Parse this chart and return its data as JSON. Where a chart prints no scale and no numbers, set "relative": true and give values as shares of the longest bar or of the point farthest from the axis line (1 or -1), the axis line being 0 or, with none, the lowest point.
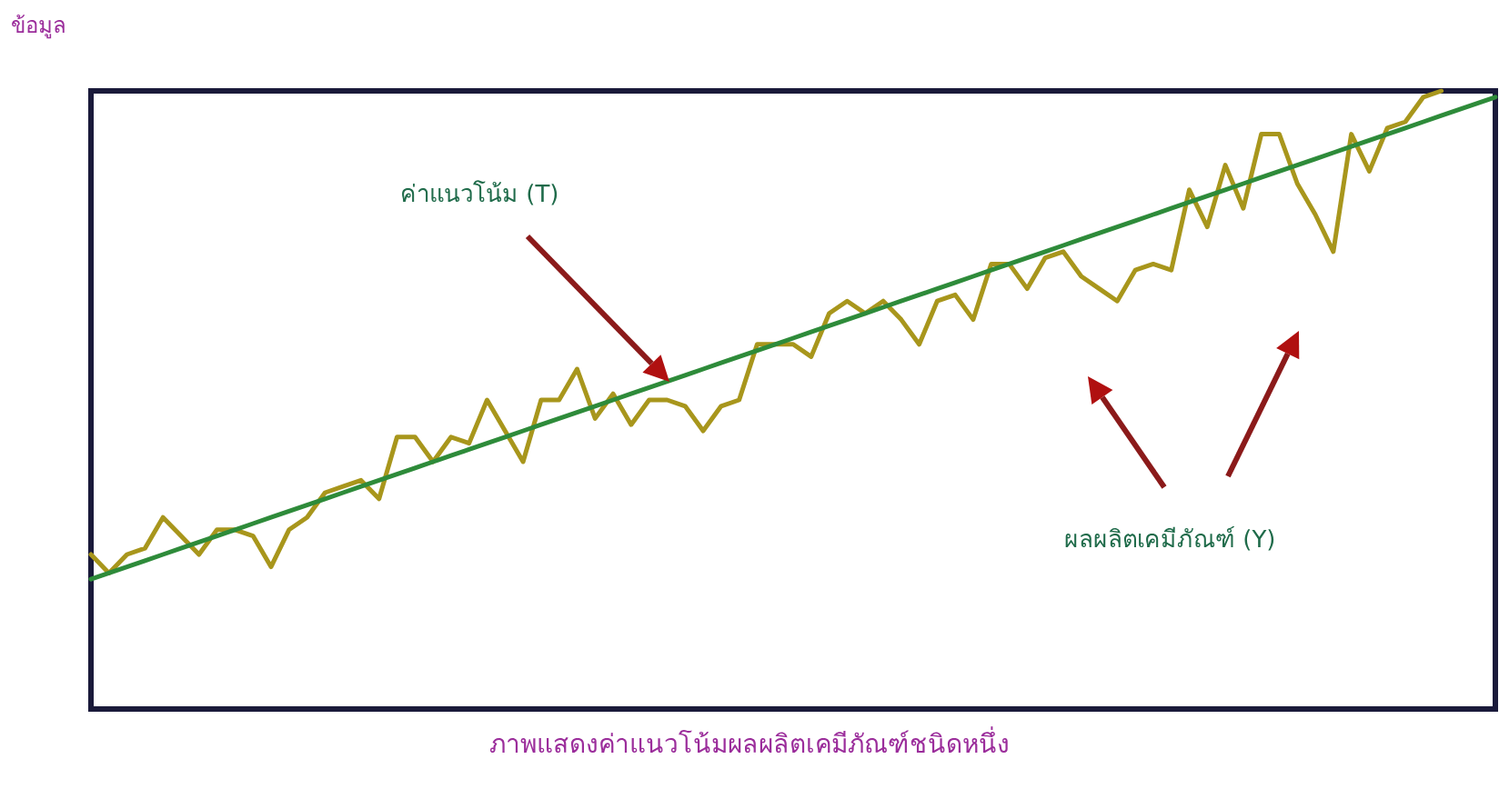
{
  "chart_data": {
    "type": "line",
    "title": "ภาพแสดงค่าแนวโน้มผลผลิตเคมีภัณฑ์ชนิดหนึ่ง",
    "ylabel": "ข้อมูล",
    "relative": true,
    "marker": "none",
    "line_style": "solid",
    "annotations": [
      "ค่าแนวโน้ม (T)",
      "ผลผลิตเคมีภัณฑ์ (Y)"
    ],
    "categories": [
      null,
      null,
      null,
      null,
      null,
      null,
      null,
      null,
      null,
      null,
      null,
      null,
      null,
      null,
      null,
      null,
      null,
      null,
      null,
      null,
      null,
      null,
      null,
      null,
      null,
      null,
      null,
      null,
      null,
      null,
      null,
      null,
      null,
      null,
      null,
      null,
      null,
      null,
      null,
      null,
      null,
      null,
      null,
      null,
      null,
      null,
      null,
      null,
      null,
      null,
      null,
      null,
      null,
      null,
      null,
      null,
      null,
      null,
      null,
      null,
      null,
      null,
      null,
      null,
      null,
      null,
      null,
      null,
      null,
      null,
      null,
      null,
      null,
      null,
      null,
      null,
      null,
      null,
      null
    ],
    "series": [
      {
        "color": "#a8961c",
        "values": [
          0.25,
          0.22,
          0.25,
          0.26,
          0.31,
          0.28,
          0.25,
          0.29,
          0.29,
          0.28,
          0.23,
          0.29,
          0.31,
          0.35,
          0.36,
          0.37,
          0.34,
          0.44,
          0.44,
          0.4,
          0.44,
          0.43,
          0.5,
          0.45,
          0.4,
          0.5,
          0.5,
          0.55,
          0.47,
          0.51,
          0.46,
          0.5,
          0.5,
          0.49,
          0.45,
          0.49,
          0.5,
          0.59,
          0.59,
          0.59,
          0.57,
          0.64,
          0.66,
          0.64,
          0.66,
          0.63,
          0.59,
          0.66,
          0.67,
          0.63,
          0.72,
          0.72,
          0.68,
          0.73,
          0.74,
          0.7,
          0.68,
          0.66,
          0.71,
          0.72,
          0.71,
          0.84,
          0.78,
          0.88,
          0.81,
          0.93,
          0.93,
          0.85,
          0.8,
          0.74,
          0.93,
          0.87,
          0.94,
          0.95,
          0.99,
          1.0,
          null,
          null,
          null
        ]
      },
      {
        "color": "#2e8b3a",
        "values": [
          0.21,
          0.22,
          0.23,
          0.24,
          0.25,
          0.26,
          0.27,
          0.28,
          0.29,
          0.3,
          0.31,
          0.32,
          0.33,
          0.34,
          0.35,
          0.36,
          0.37,
          0.38,
          0.39,
          0.4,
          0.41,
          0.42,
          0.43,
          0.44,
          0.45,
          0.46,
          0.47,
          0.48,
          0.49,
          0.5,
          0.51,
          0.52,
          0.53,
          0.54,
          0.55,
          0.56,
          0.57,
          0.58,
          0.59,
          0.6,
          0.61,
          0.62,
          0.63,
          0.64,
          0.65,
          0.66,
          0.67,
          0.68,
          0.69,
          0.7,
          0.71,
          0.72,
          0.73,
          0.74,
          0.75,
          0.76,
          0.77,
          0.78,
          0.79,
          0.8,
          0.81,
          0.82,
          0.83,
          0.84,
          0.85,
          0.86,
          0.87,
          0.88,
          0.89,
          0.9,
          0.91,
          0.92,
          0.93,
          0.94,
          0.95,
          0.96,
          0.97,
          0.98,
          0.99
        ]
      }
    ]
  }
}
